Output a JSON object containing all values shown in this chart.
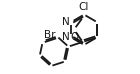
{
  "bg_color": "#ffffff",
  "line_color": "#1a1a1a",
  "line_width": 1.3,
  "font_size": 7.5,
  "label_Cl": "Cl",
  "label_N1": "N",
  "label_N2": "N",
  "label_O": "O",
  "label_Br": "Br"
}
